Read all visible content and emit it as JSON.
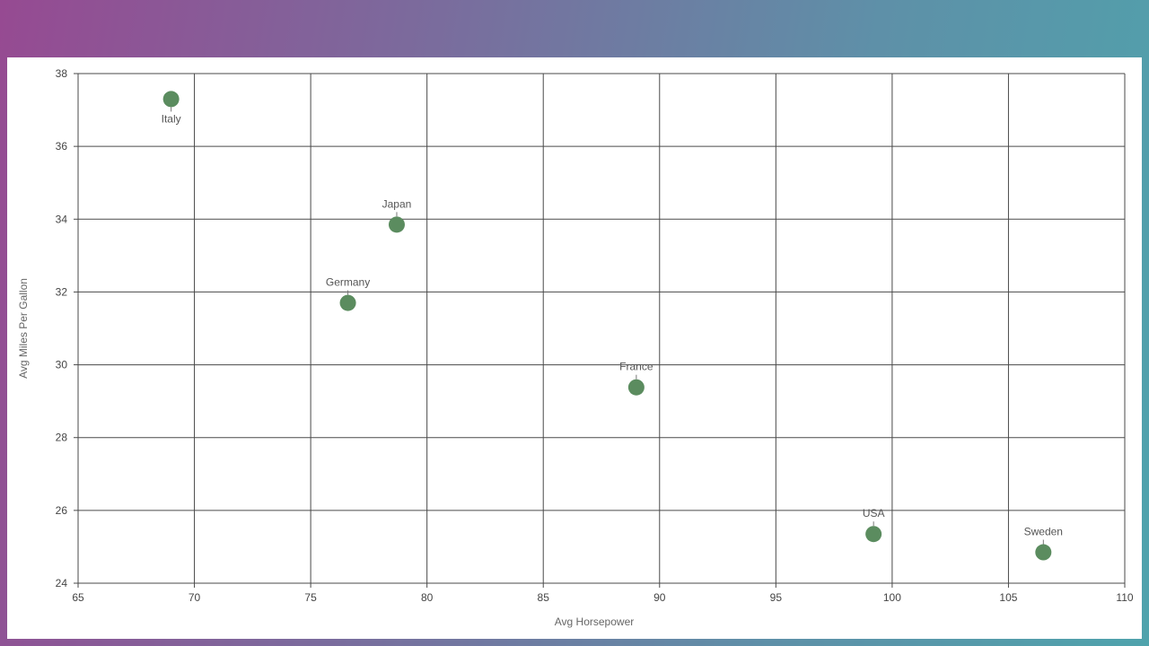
{
  "chart_data": {
    "type": "scatter",
    "title": "",
    "xlabel": "Avg Horsepower",
    "ylabel": "Avg Miles Per Gallon",
    "xlim": [
      65,
      110
    ],
    "ylim": [
      24,
      38
    ],
    "x_ticks": [
      65,
      70,
      75,
      80,
      85,
      90,
      95,
      100,
      105,
      110
    ],
    "y_ticks": [
      24,
      26,
      28,
      30,
      32,
      34,
      36,
      38
    ],
    "grid": true,
    "legend": "none",
    "point_color": "#5b8c5f",
    "points": [
      {
        "label": "Italy",
        "x": 69.0,
        "y": 37.3,
        "label_position": "below"
      },
      {
        "label": "Japan",
        "x": 78.7,
        "y": 33.85,
        "label_position": "above"
      },
      {
        "label": "Germany",
        "x": 76.6,
        "y": 31.7,
        "label_position": "above"
      },
      {
        "label": "France",
        "x": 89.0,
        "y": 29.38,
        "label_position": "above"
      },
      {
        "label": "USA",
        "x": 99.2,
        "y": 25.35,
        "label_position": "above"
      },
      {
        "label": "Sweden",
        "x": 106.5,
        "y": 24.85,
        "label_position": "above"
      }
    ]
  }
}
